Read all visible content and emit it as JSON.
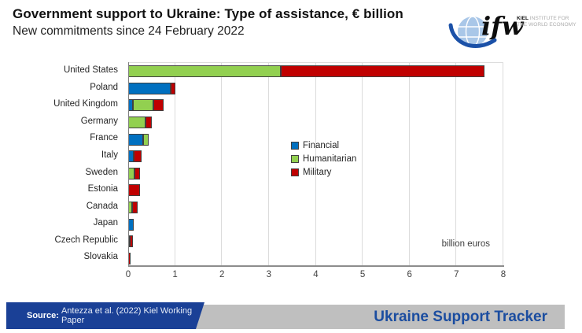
{
  "header": {
    "title": "Government support to Ukraine: Type of assistance, € billion",
    "subtitle": "New commitments since 24 February 2022"
  },
  "logo": {
    "wordmark": "ifw",
    "institute_bold": "KIEL",
    "institute_line1": "INSTITUTE FOR",
    "institute_line2": "THE WORLD ECONOMY",
    "globe_color": "#A9C7E8",
    "swoosh_color": "#1B51A8"
  },
  "chart_data": {
    "type": "bar",
    "orientation": "horizontal",
    "stacked": true,
    "grid": true,
    "categories": [
      "United States",
      "Poland",
      "United Kingdom",
      "Germany",
      "France",
      "Italy",
      "Sweden",
      "Estonia",
      "Canada",
      "Japan",
      "Czech Republic",
      "Slovakia"
    ],
    "series": [
      {
        "name": "Financial",
        "color": "#0070C0",
        "values": [
          0,
          0.9,
          0.1,
          0,
          0.32,
          0.12,
          0,
          0,
          0,
          0.12,
          0,
          0
        ]
      },
      {
        "name": "Humanitarian",
        "color": "#92D050",
        "values": [
          3.25,
          0,
          0.43,
          0.37,
          0.12,
          0,
          0.14,
          0,
          0.09,
          0,
          0.02,
          0
        ]
      },
      {
        "name": "Military",
        "color": "#C00000",
        "values": [
          4.35,
          0.1,
          0.22,
          0.14,
          0,
          0.17,
          0.12,
          0.25,
          0.11,
          0,
          0.07,
          0.05
        ]
      }
    ],
    "xlim": [
      0,
      8
    ],
    "xticks": [
      0,
      1,
      2,
      3,
      4,
      5,
      6,
      7,
      8
    ],
    "xlabel": "",
    "ylabel": "",
    "axis_note": "billion euros",
    "legend_position": "center-right"
  },
  "footer": {
    "source_label": "Source:",
    "source_text": "Antezza et al. (2022) Kiel Working Paper",
    "source_bg": "#1A4096",
    "bar_bg": "#BFBFBF",
    "tracker_title": "Ukraine Support Tracker",
    "tracker_color": "#1B4DA0"
  }
}
